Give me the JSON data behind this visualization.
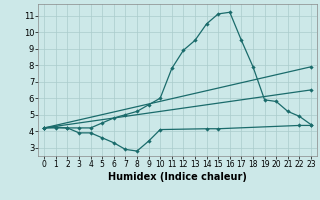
{
  "xlabel": "Humidex (Indice chaleur)",
  "bg_color": "#cce8e8",
  "grid_color": "#aacccc",
  "line_color": "#1a6b6b",
  "xlim": [
    -0.5,
    23.5
  ],
  "ylim": [
    2.5,
    11.7
  ],
  "xticks": [
    0,
    1,
    2,
    3,
    4,
    5,
    6,
    7,
    8,
    9,
    10,
    11,
    12,
    13,
    14,
    15,
    16,
    17,
    18,
    19,
    20,
    21,
    22,
    23
  ],
  "yticks": [
    3,
    4,
    5,
    6,
    7,
    8,
    9,
    10,
    11
  ],
  "line1_x": [
    0,
    1,
    2,
    3,
    4,
    5,
    6,
    7,
    8,
    9,
    10,
    11,
    12,
    13,
    14,
    15,
    16,
    17,
    18,
    19,
    20,
    21,
    22,
    23
  ],
  "line1_y": [
    4.2,
    4.25,
    4.2,
    4.2,
    4.2,
    4.5,
    4.8,
    5.0,
    5.2,
    5.6,
    6.0,
    7.8,
    8.9,
    9.5,
    10.5,
    11.1,
    11.2,
    9.5,
    7.9,
    5.9,
    5.8,
    5.2,
    4.9,
    4.4
  ],
  "line2_x": [
    0,
    23
  ],
  "line2_y": [
    4.2,
    7.9
  ],
  "line3_x": [
    0,
    23
  ],
  "line3_y": [
    4.2,
    6.5
  ],
  "line4_x": [
    0,
    1,
    2,
    3,
    4,
    5,
    6,
    7,
    8,
    9,
    10,
    14,
    15,
    22,
    23
  ],
  "line4_y": [
    4.2,
    4.2,
    4.2,
    3.9,
    3.9,
    3.6,
    3.3,
    2.9,
    2.8,
    3.4,
    4.1,
    4.15,
    4.15,
    4.35,
    4.35
  ],
  "xlabel_fontsize": 7,
  "tick_fontsize": 5.5
}
